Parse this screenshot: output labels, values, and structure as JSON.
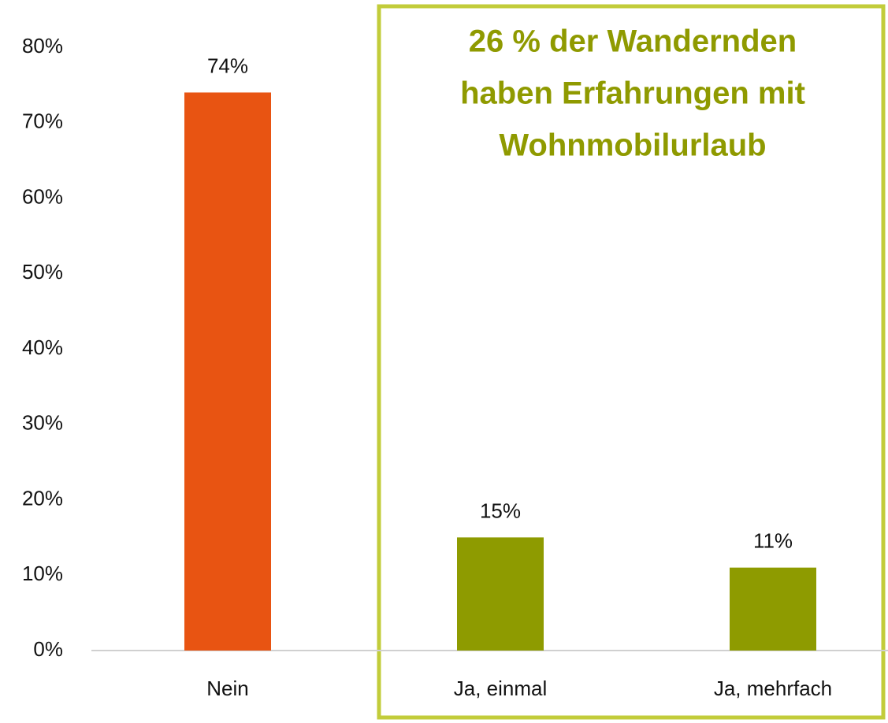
{
  "chart_data": {
    "type": "bar",
    "categories": [
      "Nein",
      "Ja, einmal",
      "Ja, mehrfach"
    ],
    "values": [
      74,
      15,
      11
    ],
    "value_labels": [
      "74%",
      "15%",
      "11%"
    ],
    "colors": [
      "#e85412",
      "#8e9b00",
      "#8e9b00"
    ],
    "ylim": [
      0,
      80
    ],
    "yticks": [
      {
        "value": 0,
        "label": "0%"
      },
      {
        "value": 10,
        "label": "10%"
      },
      {
        "value": 20,
        "label": "20%"
      },
      {
        "value": 30,
        "label": "30%"
      },
      {
        "value": 40,
        "label": "40%"
      },
      {
        "value": 50,
        "label": "50%"
      },
      {
        "value": 60,
        "label": "60%"
      },
      {
        "value": 70,
        "label": "70%"
      },
      {
        "value": 80,
        "label": "80%"
      }
    ],
    "grid": false,
    "annotation": [
      "26 % der Wandernden",
      "haben Erfahrungen mit",
      "Wohnmobilurlaub"
    ]
  }
}
